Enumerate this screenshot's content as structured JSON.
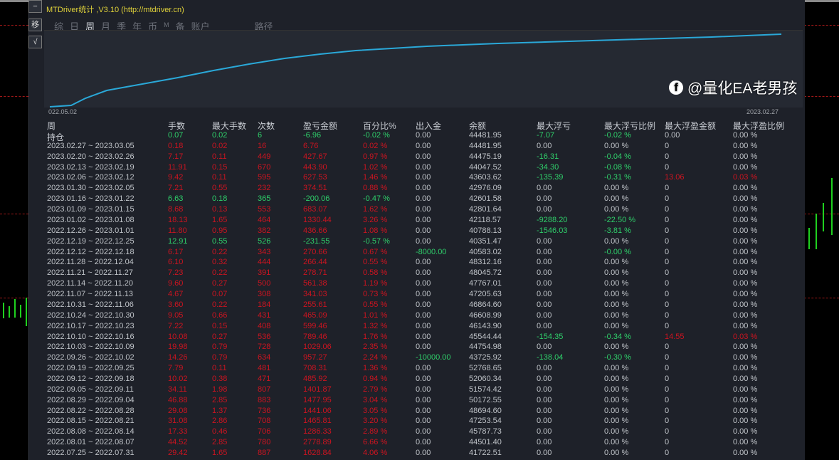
{
  "window": {
    "title": "MTDriver统计 ,V3.10 (http://mtdriver.cn)"
  },
  "side_buttons": [
    {
      "label": "−",
      "icon": "minimize-icon"
    },
    {
      "label": "移",
      "icon": "move-icon"
    },
    {
      "label": "√",
      "icon": "check-icon"
    }
  ],
  "tabs": [
    {
      "label": "综"
    },
    {
      "label": "日"
    },
    {
      "label": "周",
      "active": true
    },
    {
      "label": "月"
    },
    {
      "label": "季"
    },
    {
      "label": "年"
    },
    {
      "label": "币"
    },
    {
      "label": "M"
    },
    {
      "label": "备"
    },
    {
      "label": "账户"
    },
    {
      "label": "路径"
    }
  ],
  "chart": {
    "start_label": "022.05.02",
    "end_label": "2023.02.27",
    "line_color": "#2aa8d8"
  },
  "colors": {
    "profit": "#cc1420",
    "loss": "#2fcf6a",
    "neutral": "#bfc3c8",
    "background": "#1e2129"
  },
  "table": {
    "columns": [
      "周",
      "手数",
      "最大手数",
      "次数",
      "盈亏金额",
      "百分比%",
      "出入金",
      "余额",
      "最大浮亏",
      "最大浮亏比例",
      "最大浮盈金额",
      "最大浮盈比例"
    ],
    "rows": [
      [
        "持仓",
        "0.07",
        "0.02",
        "6",
        "-6.96",
        "-0.02 %",
        "0.00",
        "44481.95",
        "-7.07",
        "-0.02 %",
        "0.00",
        "0.00 %"
      ],
      [
        "2023.02.27 ~ 2023.03.05",
        "0.18",
        "0.02",
        "16",
        "6.76",
        "0.02 %",
        "0.00",
        "44481.95",
        "0.00",
        "0.00 %",
        "0",
        "0.00 %"
      ],
      [
        "2023.02.20 ~ 2023.02.26",
        "7.17",
        "0.11",
        "449",
        "427.67",
        "0.97 %",
        "0.00",
        "44475.19",
        "-16.31",
        "-0.04 %",
        "0",
        "0.00 %"
      ],
      [
        "2023.02.13 ~ 2023.02.19",
        "11.91",
        "0.15",
        "670",
        "443.90",
        "1.02 %",
        "0.00",
        "44047.52",
        "-34.30",
        "-0.08 %",
        "0",
        "0.00 %"
      ],
      [
        "2023.02.06 ~ 2023.02.12",
        "9.42",
        "0.11",
        "595",
        "627.53",
        "1.46 %",
        "0.00",
        "43603.62",
        "-135.39",
        "-0.31 %",
        "13.06",
        "0.03 %"
      ],
      [
        "2023.01.30 ~ 2023.02.05",
        "7.21",
        "0.55",
        "232",
        "374.51",
        "0.88 %",
        "0.00",
        "42976.09",
        "0.00",
        "0.00 %",
        "0",
        "0.00 %"
      ],
      [
        "2023.01.16 ~ 2023.01.22",
        "6.63",
        "0.18",
        "365",
        "-200.06",
        "-0.47 %",
        "0.00",
        "42601.58",
        "0.00",
        "0.00 %",
        "0",
        "0.00 %"
      ],
      [
        "2023.01.09 ~ 2023.01.15",
        "8.68",
        "0.13",
        "553",
        "683.07",
        "1.62 %",
        "0.00",
        "42801.64",
        "0.00",
        "0.00 %",
        "0",
        "0.00 %"
      ],
      [
        "2023.01.02 ~ 2023.01.08",
        "18.13",
        "1.65",
        "464",
        "1330.44",
        "3.26 %",
        "0.00",
        "42118.57",
        "-9288.20",
        "-22.50 %",
        "0",
        "0.00 %"
      ],
      [
        "2022.12.26 ~ 2023.01.01",
        "11.80",
        "0.95",
        "382",
        "436.66",
        "1.08 %",
        "0.00",
        "40788.13",
        "-1546.03",
        "-3.81 %",
        "0",
        "0.00 %"
      ],
      [
        "2022.12.19 ~ 2022.12.25",
        "12.91",
        "0.55",
        "526",
        "-231.55",
        "-0.57 %",
        "0.00",
        "40351.47",
        "0.00",
        "0.00 %",
        "0",
        "0.00 %"
      ],
      [
        "2022.12.12 ~ 2022.12.18",
        "6.17",
        "0.22",
        "343",
        "270.66",
        "0.67 %",
        "-8000.00",
        "40583.02",
        "0.00",
        "-0.00 %",
        "0",
        "0.00 %"
      ],
      [
        "2022.11.28 ~ 2022.12.04",
        "6.10",
        "0.32",
        "444",
        "266.44",
        "0.55 %",
        "0.00",
        "48312.16",
        "0.00",
        "0.00 %",
        "0",
        "0.00 %"
      ],
      [
        "2022.11.21 ~ 2022.11.27",
        "7.23",
        "0.22",
        "391",
        "278.71",
        "0.58 %",
        "0.00",
        "48045.72",
        "0.00",
        "0.00 %",
        "0",
        "0.00 %"
      ],
      [
        "2022.11.14 ~ 2022.11.20",
        "9.60",
        "0.27",
        "500",
        "561.38",
        "1.19 %",
        "0.00",
        "47767.01",
        "0.00",
        "0.00 %",
        "0",
        "0.00 %"
      ],
      [
        "2022.11.07 ~ 2022.11.13",
        "4.67",
        "0.07",
        "308",
        "341.03",
        "0.73 %",
        "0.00",
        "47205.63",
        "0.00",
        "0.00 %",
        "0",
        "0.00 %"
      ],
      [
        "2022.10.31 ~ 2022.11.06",
        "3.60",
        "0.22",
        "184",
        "255.61",
        "0.55 %",
        "0.00",
        "46864.60",
        "0.00",
        "0.00 %",
        "0",
        "0.00 %"
      ],
      [
        "2022.10.24 ~ 2022.10.30",
        "9.05",
        "0.66",
        "431",
        "465.09",
        "1.01 %",
        "0.00",
        "46608.99",
        "0.00",
        "0.00 %",
        "0",
        "0.00 %"
      ],
      [
        "2022.10.17 ~ 2022.10.23",
        "7.22",
        "0.15",
        "408",
        "599.46",
        "1.32 %",
        "0.00",
        "46143.90",
        "0.00",
        "0.00 %",
        "0",
        "0.00 %"
      ],
      [
        "2022.10.10 ~ 2022.10.16",
        "10.08",
        "0.27",
        "536",
        "789.46",
        "1.76 %",
        "0.00",
        "45544.44",
        "-154.35",
        "-0.34 %",
        "14.55",
        "0.03 %"
      ],
      [
        "2022.10.03 ~ 2022.10.09",
        "19.98",
        "0.79",
        "728",
        "1029.06",
        "2.35 %",
        "0.00",
        "44754.98",
        "0.00",
        "0.00 %",
        "0",
        "0.00 %"
      ],
      [
        "2022.09.26 ~ 2022.10.02",
        "14.26",
        "0.79",
        "634",
        "957.27",
        "2.24 %",
        "-10000.00",
        "43725.92",
        "-138.04",
        "-0.30 %",
        "0",
        "0.00 %"
      ],
      [
        "2022.09.19 ~ 2022.09.25",
        "7.79",
        "0.11",
        "481",
        "708.31",
        "1.36 %",
        "0.00",
        "52768.65",
        "0.00",
        "0.00 %",
        "0",
        "0.00 %"
      ],
      [
        "2022.09.12 ~ 2022.09.18",
        "10.02",
        "0.38",
        "471",
        "485.92",
        "0.94 %",
        "0.00",
        "52060.34",
        "0.00",
        "0.00 %",
        "0",
        "0.00 %"
      ],
      [
        "2022.09.05 ~ 2022.09.11",
        "34.11",
        "1.98",
        "807",
        "1401.87",
        "2.79 %",
        "0.00",
        "51574.42",
        "0.00",
        "0.00 %",
        "0",
        "0.00 %"
      ],
      [
        "2022.08.29 ~ 2022.09.04",
        "46.88",
        "2.85",
        "883",
        "1477.95",
        "3.04 %",
        "0.00",
        "50172.55",
        "0.00",
        "0.00 %",
        "0",
        "0.00 %"
      ],
      [
        "2022.08.22 ~ 2022.08.28",
        "29.08",
        "1.37",
        "736",
        "1441.06",
        "3.05 %",
        "0.00",
        "48694.60",
        "0.00",
        "0.00 %",
        "0",
        "0.00 %"
      ],
      [
        "2022.08.15 ~ 2022.08.21",
        "31.08",
        "2.86",
        "708",
        "1465.81",
        "3.20 %",
        "0.00",
        "47253.54",
        "0.00",
        "0.00 %",
        "0",
        "0.00 %"
      ],
      [
        "2022.08.08 ~ 2022.08.14",
        "17.33",
        "0.46",
        "706",
        "1286.33",
        "2.89 %",
        "0.00",
        "45787.73",
        "0.00",
        "0.00 %",
        "0",
        "0.00 %"
      ],
      [
        "2022.08.01 ~ 2022.08.07",
        "44.52",
        "2.85",
        "780",
        "2778.89",
        "6.66 %",
        "0.00",
        "44501.40",
        "0.00",
        "0.00 %",
        "0",
        "0.00 %"
      ],
      [
        "2022.07.25 ~ 2022.07.31",
        "29.42",
        "1.65",
        "887",
        "1628.84",
        "4.06 %",
        "0.00",
        "41722.51",
        "0.00",
        "0.00 %",
        "0",
        "0.00 %"
      ]
    ]
  },
  "watermark": {
    "text": "@量化EA老男孩",
    "icon": "facebook-icon"
  }
}
